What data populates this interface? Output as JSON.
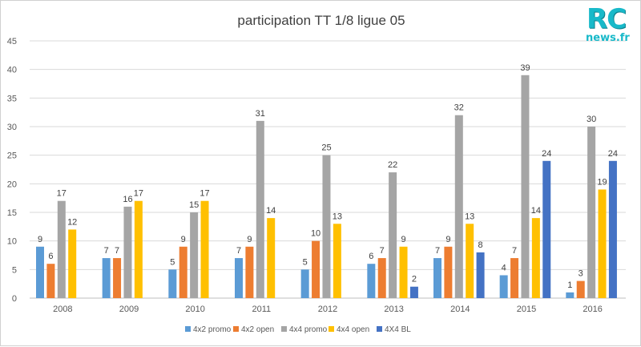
{
  "logo": {
    "line1": "RC",
    "line2": "news.fr"
  },
  "chart_data": {
    "type": "bar",
    "title": "participation TT 1/8 ligue 05",
    "xlabel": "",
    "ylabel": "",
    "ylim": [
      0,
      45
    ],
    "yticks": [
      0,
      5,
      10,
      15,
      20,
      25,
      30,
      35,
      40,
      45
    ],
    "grid": true,
    "legend_position": "bottom",
    "categories": [
      "2008",
      "2009",
      "2010",
      "2011",
      "2012",
      "2013",
      "2014",
      "2015",
      "2016"
    ],
    "series": [
      {
        "name": "4x2 promo",
        "color": "#5b9bd5",
        "values": [
          9,
          7,
          5,
          7,
          5,
          6,
          7,
          4,
          1
        ]
      },
      {
        "name": "4x2 open",
        "color": "#ed7d31",
        "values": [
          6,
          7,
          9,
          9,
          10,
          7,
          9,
          7,
          3
        ]
      },
      {
        "name": "4x4 promo",
        "color": "#a5a5a5",
        "values": [
          17,
          16,
          15,
          31,
          25,
          22,
          32,
          39,
          30
        ]
      },
      {
        "name": "4x4 open",
        "color": "#ffc000",
        "values": [
          12,
          17,
          17,
          14,
          13,
          9,
          13,
          14,
          19
        ]
      },
      {
        "name": "4X4 BL",
        "color": "#4472c4",
        "values": [
          null,
          null,
          null,
          null,
          null,
          2,
          8,
          24,
          24
        ]
      }
    ]
  }
}
